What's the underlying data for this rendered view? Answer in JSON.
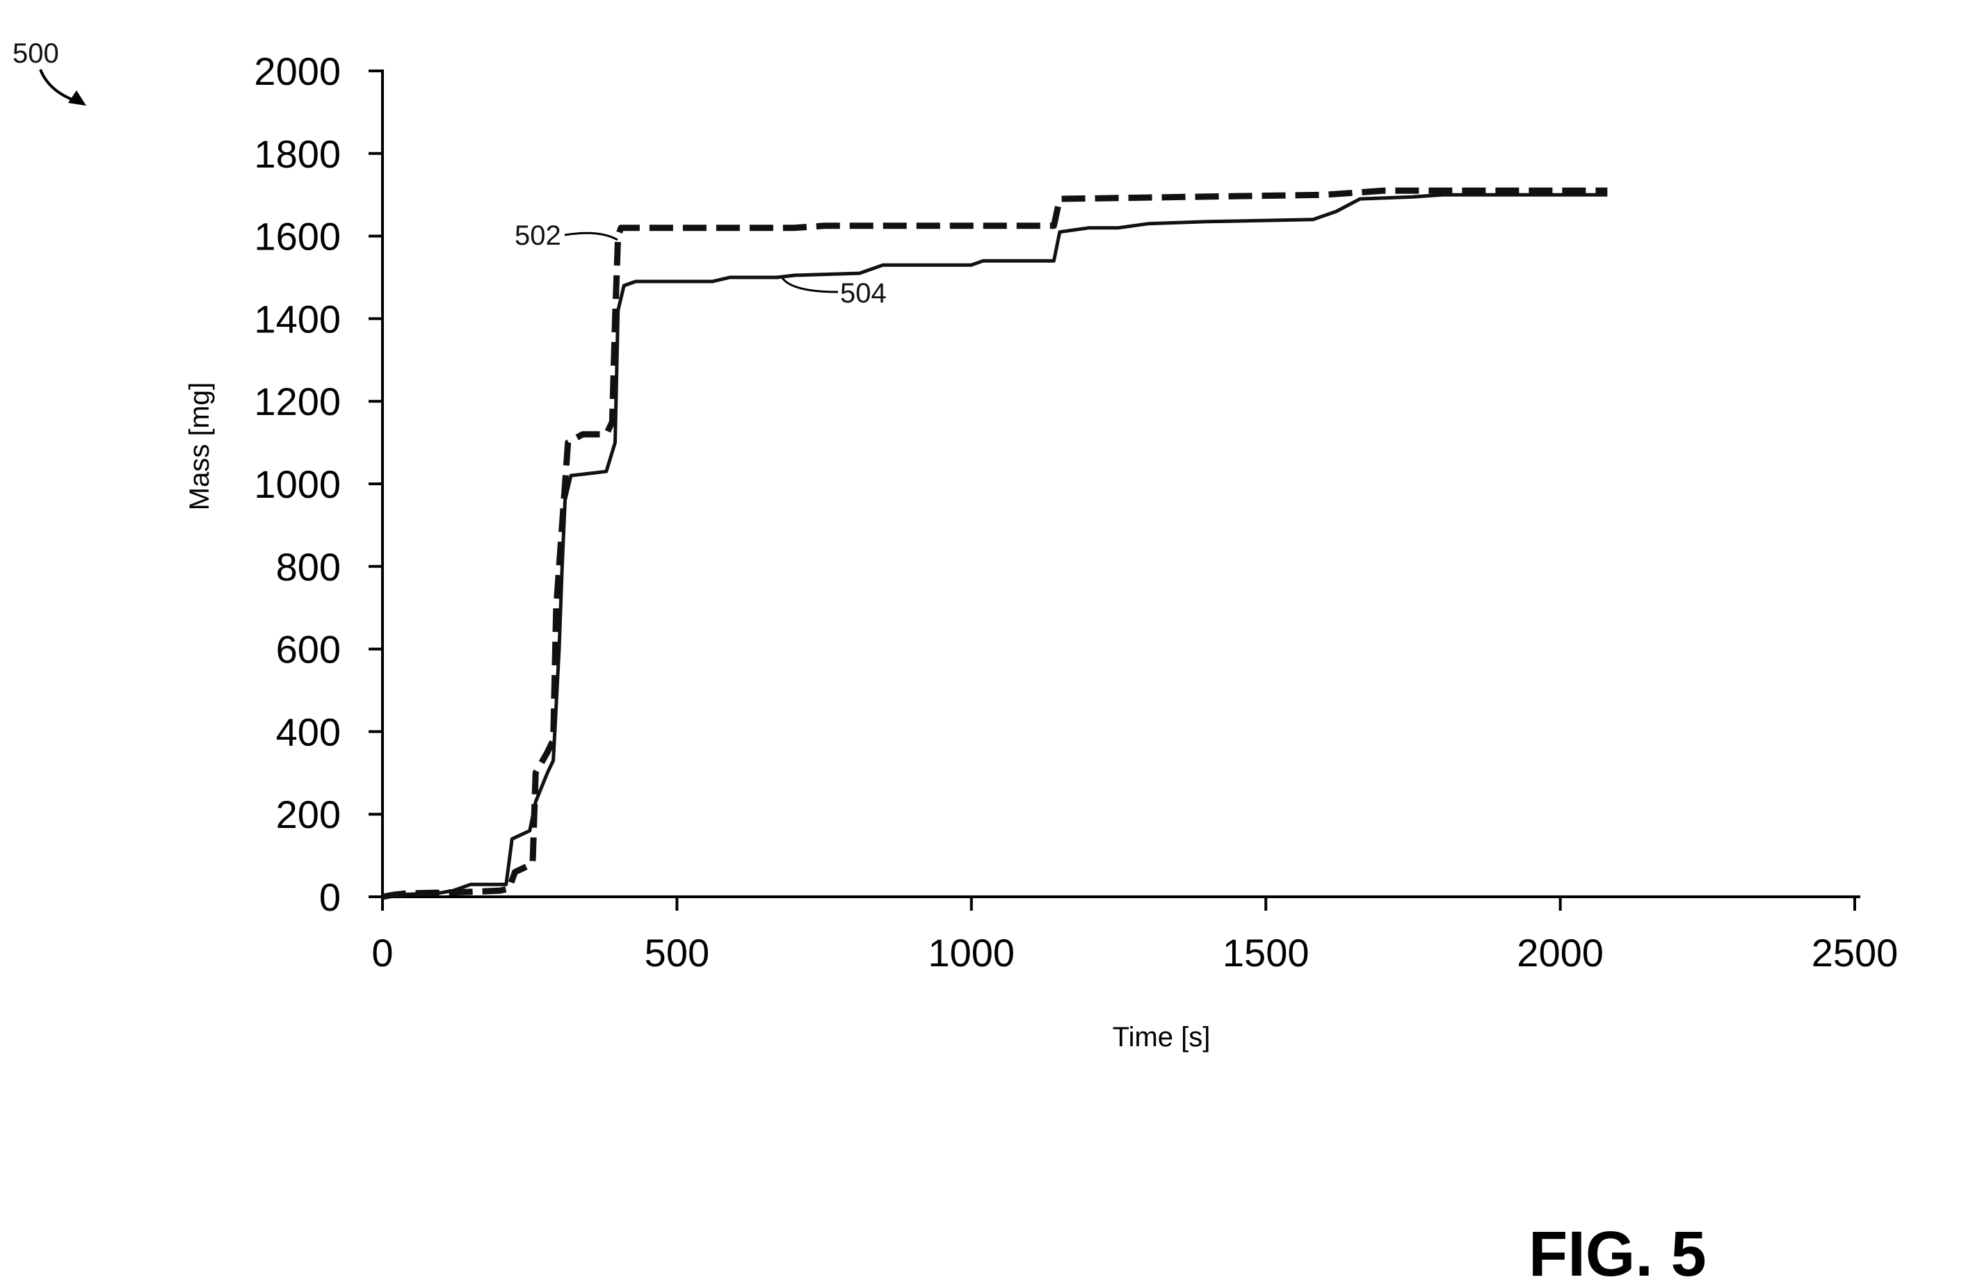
{
  "figure": {
    "ref_number": "500",
    "fig_label": "FIG. 5"
  },
  "chart_data": {
    "type": "line",
    "xlabel": "Time [s]",
    "ylabel": "Mass [mg]",
    "xlim": [
      0,
      2500
    ],
    "ylim": [
      0,
      2000
    ],
    "xticks": [
      0,
      500,
      1000,
      1500,
      2000,
      2500
    ],
    "yticks": [
      0,
      200,
      400,
      600,
      800,
      1000,
      1200,
      1400,
      1600,
      1800,
      2000
    ],
    "grid": false,
    "legend": "none",
    "series": [
      {
        "name": "502",
        "style": "dashed",
        "color": "#111111",
        "points": [
          [
            0,
            0
          ],
          [
            20,
            5
          ],
          [
            40,
            8
          ],
          [
            100,
            10
          ],
          [
            150,
            12
          ],
          [
            200,
            15
          ],
          [
            215,
            20
          ],
          [
            225,
            60
          ],
          [
            240,
            70
          ],
          [
            255,
            80
          ],
          [
            260,
            300
          ],
          [
            280,
            350
          ],
          [
            290,
            380
          ],
          [
            295,
            700
          ],
          [
            305,
            900
          ],
          [
            315,
            1100
          ],
          [
            340,
            1120
          ],
          [
            380,
            1120
          ],
          [
            390,
            1150
          ],
          [
            395,
            1400
          ],
          [
            400,
            1600
          ],
          [
            405,
            1620
          ],
          [
            700,
            1620
          ],
          [
            750,
            1625
          ],
          [
            1140,
            1625
          ],
          [
            1150,
            1690
          ],
          [
            1600,
            1700
          ],
          [
            1700,
            1710
          ],
          [
            2080,
            1710
          ]
        ]
      },
      {
        "name": "504",
        "style": "solid",
        "color": "#111111",
        "points": [
          [
            0,
            0
          ],
          [
            30,
            5
          ],
          [
            100,
            10
          ],
          [
            120,
            15
          ],
          [
            150,
            30
          ],
          [
            210,
            30
          ],
          [
            220,
            140
          ],
          [
            250,
            160
          ],
          [
            260,
            230
          ],
          [
            280,
            300
          ],
          [
            290,
            330
          ],
          [
            300,
            600
          ],
          [
            305,
            800
          ],
          [
            310,
            960
          ],
          [
            320,
            1020
          ],
          [
            380,
            1030
          ],
          [
            395,
            1100
          ],
          [
            400,
            1420
          ],
          [
            410,
            1480
          ],
          [
            430,
            1490
          ],
          [
            560,
            1490
          ],
          [
            590,
            1500
          ],
          [
            670,
            1500
          ],
          [
            700,
            1505
          ],
          [
            810,
            1510
          ],
          [
            850,
            1530
          ],
          [
            1000,
            1530
          ],
          [
            1020,
            1540
          ],
          [
            1140,
            1540
          ],
          [
            1150,
            1610
          ],
          [
            1200,
            1620
          ],
          [
            1250,
            1620
          ],
          [
            1300,
            1630
          ],
          [
            1400,
            1635
          ],
          [
            1580,
            1640
          ],
          [
            1620,
            1660
          ],
          [
            1660,
            1690
          ],
          [
            1750,
            1695
          ],
          [
            1800,
            1700
          ],
          [
            2080,
            1700
          ]
        ]
      }
    ],
    "annotations": [
      {
        "text": "502",
        "target_series": "502"
      },
      {
        "text": "504",
        "target_series": "504"
      }
    ]
  }
}
